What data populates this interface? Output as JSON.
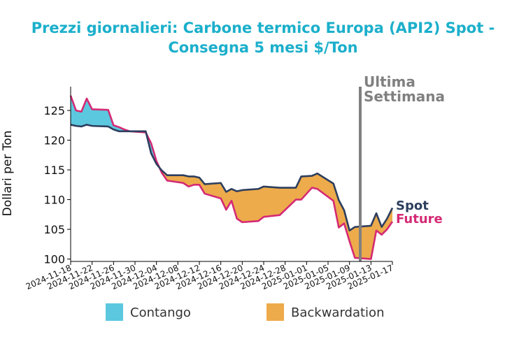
{
  "chart_data": {
    "type": "area",
    "title_lines": [
      "Prezzi giornalieri: Carbone termico Europa (API2) Spot -",
      "Consegna 5 mesi $/Ton"
    ],
    "xlabel": "",
    "ylabel": "Dollari per Ton",
    "ylim": [
      99.6,
      129
    ],
    "yticks": [
      100,
      105,
      110,
      115,
      120,
      125
    ],
    "x_tick_labels": [
      "2024-11-18",
      "2024-11-22",
      "2024-11-26",
      "2024-11-30",
      "2024-12-04",
      "2024-12-08",
      "2024-12-12",
      "2024-12-16",
      "2024-12-20",
      "2024-12-24",
      "2024-12-28",
      "2025-01-01",
      "2025-01-05",
      "2025-01-09",
      "2025-01-13",
      "2025-01-17"
    ],
    "x_start": "2024-11-18",
    "x_end": "2025-01-17",
    "colors": {
      "spot": "#2D3E5E",
      "future": "#D42A74",
      "contango": "#5BC8DF",
      "backwardation": "#EDAB4B",
      "marker": "#808080",
      "title": "#1BAFCB"
    },
    "series": [
      {
        "name": "Spot",
        "points": [
          [
            "2024-11-18",
            122.6
          ],
          [
            "2024-11-19",
            122.4
          ],
          [
            "2024-11-20",
            122.3
          ],
          [
            "2024-11-21",
            122.6
          ],
          [
            "2024-11-22",
            122.4
          ],
          [
            "2024-11-25",
            122.3
          ],
          [
            "2024-11-26",
            121.8
          ],
          [
            "2024-11-27",
            121.5
          ],
          [
            "2024-11-28",
            121.5
          ],
          [
            "2024-11-29",
            121.5
          ],
          [
            "2024-12-02",
            121.5
          ],
          [
            "2024-12-03",
            117.8
          ],
          [
            "2024-12-04",
            116.0
          ],
          [
            "2024-12-05",
            114.9
          ],
          [
            "2024-12-06",
            114.1
          ],
          [
            "2024-12-09",
            114.1
          ],
          [
            "2024-12-10",
            113.9
          ],
          [
            "2024-12-11",
            113.9
          ],
          [
            "2024-12-12",
            113.7
          ],
          [
            "2024-12-13",
            112.6
          ],
          [
            "2024-12-16",
            112.8
          ],
          [
            "2024-12-17",
            111.3
          ],
          [
            "2024-12-18",
            111.8
          ],
          [
            "2024-12-19",
            111.4
          ],
          [
            "2024-12-20",
            111.6
          ],
          [
            "2024-12-23",
            111.8
          ],
          [
            "2024-12-24",
            112.2
          ],
          [
            "2024-12-27",
            112.0
          ],
          [
            "2024-12-30",
            112.0
          ],
          [
            "2024-12-31",
            113.9
          ],
          [
            "2025-01-02",
            114.0
          ],
          [
            "2025-01-03",
            114.4
          ],
          [
            "2025-01-06",
            112.7
          ],
          [
            "2025-01-07",
            109.9
          ],
          [
            "2025-01-08",
            108.2
          ],
          [
            "2025-01-09",
            104.8
          ],
          [
            "2025-01-10",
            105.4
          ],
          [
            "2025-01-13",
            105.6
          ],
          [
            "2025-01-14",
            107.7
          ],
          [
            "2025-01-15",
            105.4
          ],
          [
            "2025-01-16",
            106.8
          ],
          [
            "2025-01-17",
            108.6
          ]
        ]
      },
      {
        "name": "Future",
        "points": [
          [
            "2024-11-18",
            127.5
          ],
          [
            "2024-11-19",
            125.0
          ],
          [
            "2024-11-20",
            124.8
          ],
          [
            "2024-11-21",
            127.0
          ],
          [
            "2024-11-22",
            125.2
          ],
          [
            "2024-11-25",
            125.1
          ],
          [
            "2024-11-26",
            122.5
          ],
          [
            "2024-11-27",
            122.2
          ],
          [
            "2024-11-28",
            121.8
          ],
          [
            "2024-11-29",
            121.5
          ],
          [
            "2024-12-02",
            121.3
          ],
          [
            "2024-12-03",
            119.5
          ],
          [
            "2024-12-04",
            116.5
          ],
          [
            "2024-12-05",
            114.5
          ],
          [
            "2024-12-06",
            113.2
          ],
          [
            "2024-12-09",
            112.8
          ],
          [
            "2024-12-10",
            112.2
          ],
          [
            "2024-12-11",
            112.5
          ],
          [
            "2024-12-12",
            112.5
          ],
          [
            "2024-12-13",
            111.0
          ],
          [
            "2024-12-16",
            110.2
          ],
          [
            "2024-12-17",
            108.3
          ],
          [
            "2024-12-18",
            109.8
          ],
          [
            "2024-12-19",
            106.8
          ],
          [
            "2024-12-20",
            106.2
          ],
          [
            "2024-12-23",
            106.4
          ],
          [
            "2024-12-24",
            107.1
          ],
          [
            "2024-12-27",
            107.4
          ],
          [
            "2024-12-30",
            110.0
          ],
          [
            "2024-12-31",
            110.0
          ],
          [
            "2025-01-02",
            112.0
          ],
          [
            "2025-01-03",
            111.8
          ],
          [
            "2025-01-06",
            109.8
          ],
          [
            "2025-01-07",
            105.3
          ],
          [
            "2025-01-08",
            106.0
          ],
          [
            "2025-01-09",
            103.0
          ],
          [
            "2025-01-10",
            100.2
          ],
          [
            "2025-01-13",
            100.0
          ],
          [
            "2025-01-14",
            104.8
          ],
          [
            "2025-01-15",
            104.1
          ],
          [
            "2025-01-16",
            105.0
          ],
          [
            "2025-01-17",
            106.3
          ]
        ]
      }
    ],
    "legend": [
      {
        "label": "Contango",
        "color_key": "contango"
      },
      {
        "label": "Backwardation",
        "color_key": "backwardation"
      }
    ],
    "legend_position": "bottom",
    "annotation": {
      "date": "2025-01-11",
      "lines": [
        "Ultima",
        "Settimana"
      ]
    }
  }
}
